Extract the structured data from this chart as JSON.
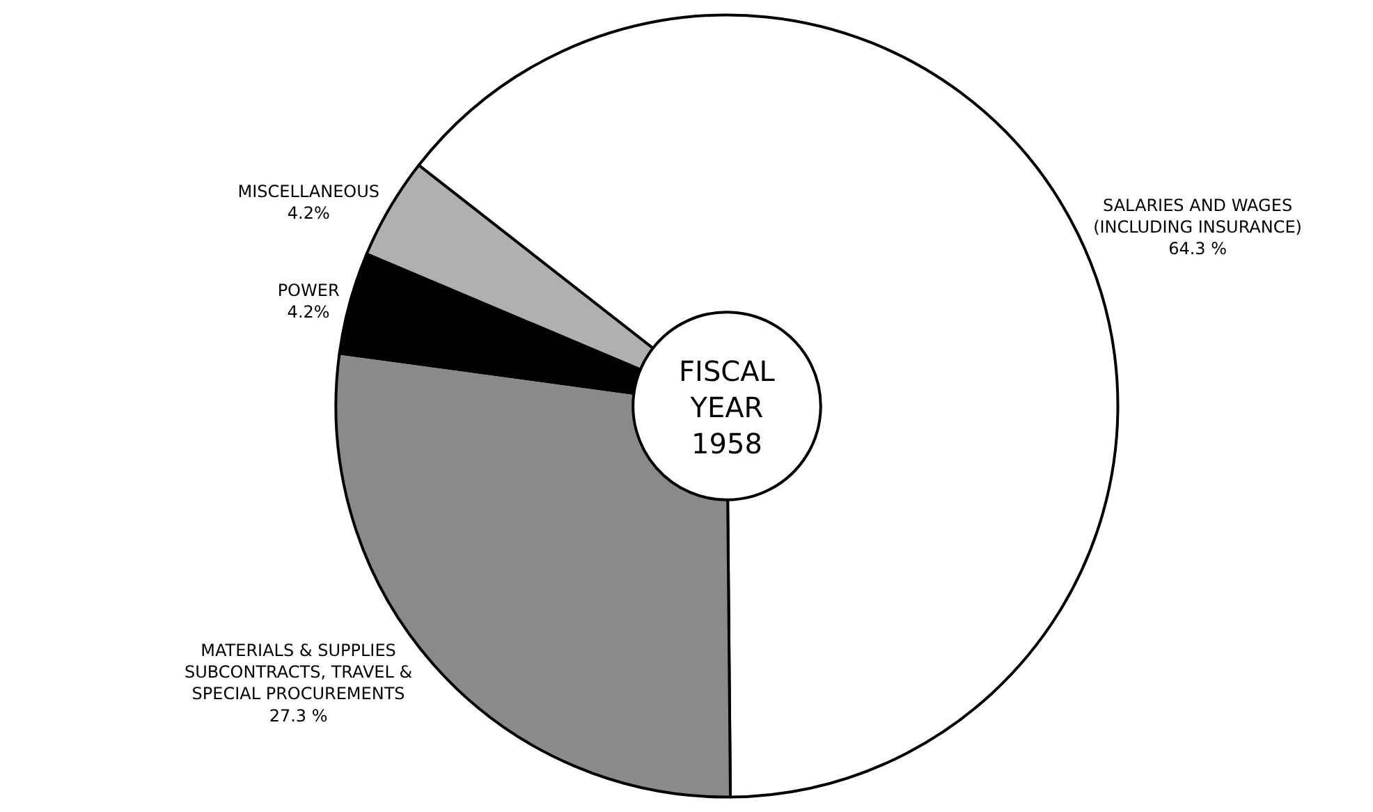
{
  "chart_data": {
    "type": "donut",
    "title": "FISCAL\nYEAR\n1958",
    "categories": [
      "SALARIES AND WAGES\n(INCLUDING INSURANCE)",
      "MATERIALS & SUPPLIES\nSUBCONTRACTS, TRAVEL &\nSPECIAL PROCUREMENTS",
      "POWER",
      "MISCELLANEOUS"
    ],
    "values": [
      64.3,
      27.3,
      4.2,
      4.2
    ],
    "value_labels": [
      "64.3 %",
      "27.3 %",
      "4.2%",
      "4.2%"
    ],
    "colors": [
      "#ffffff",
      "#8a8a8a",
      "#000000",
      "#b0b0b0"
    ],
    "legend": false
  }
}
